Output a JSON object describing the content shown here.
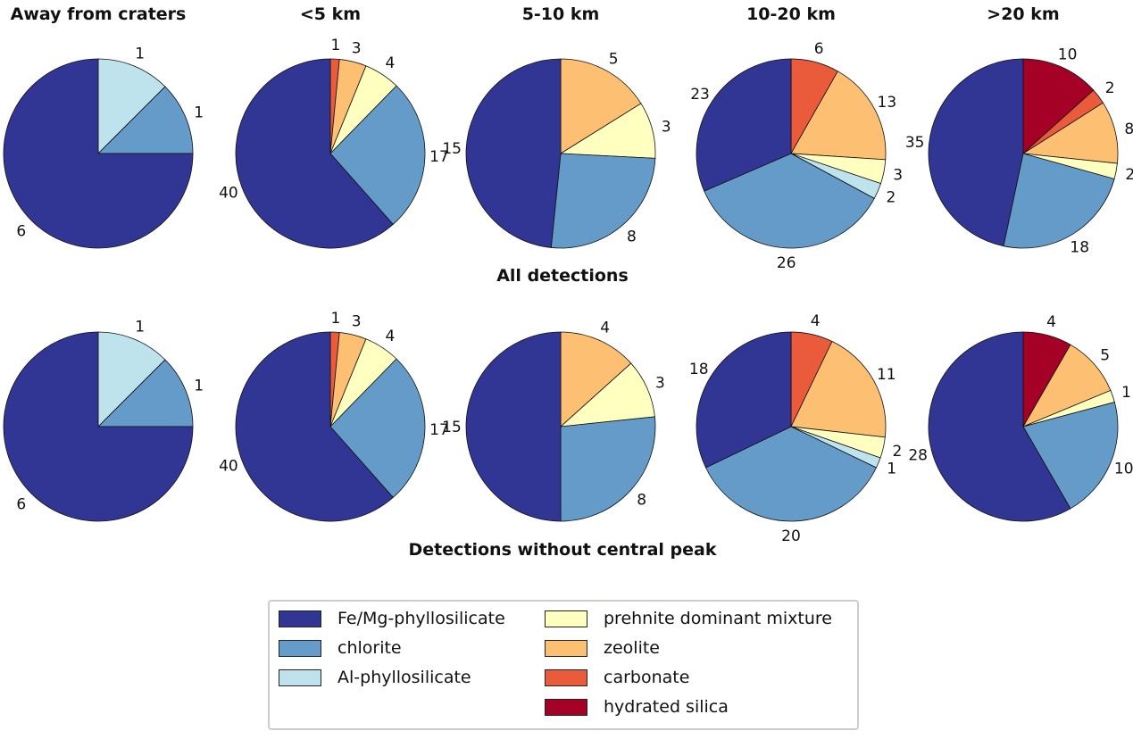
{
  "chart_data": {
    "type": "pie",
    "column_titles": [
      "Away from craters",
      "<5 km",
      "5-10 km",
      "10-20 km",
      ">20 km"
    ],
    "row_titles": [
      "All detections",
      "Detections without central peak"
    ],
    "categories": [
      "Fe/Mg-phyllosilicate",
      "chlorite",
      "Al-phyllosilicate",
      "prehnite dominant mixture",
      "zeolite",
      "carbonate",
      "hydrated silica"
    ],
    "colors": {
      "Fe/Mg-phyllosilicate": "#313695",
      "chlorite": "#649bc8",
      "Al-phyllosilicate": "#bee3ed",
      "prehnite dominant mixture": "#ffffbf",
      "zeolite": "#fdbf72",
      "carbonate": "#e95b3b",
      "hydrated silica": "#a50026"
    },
    "slice_order_clockwise_from_top": [
      "hydrated silica",
      "carbonate",
      "zeolite",
      "prehnite dominant mixture",
      "Al-phyllosilicate",
      "chlorite",
      "Fe/Mg-phyllosilicate"
    ],
    "pies": [
      [
        {
          "Al-phyllosilicate": 1,
          "chlorite": 1,
          "Fe/Mg-phyllosilicate": 6
        },
        {
          "carbonate": 1,
          "zeolite": 3,
          "prehnite dominant mixture": 4,
          "chlorite": 17,
          "Fe/Mg-phyllosilicate": 40
        },
        {
          "zeolite": 5,
          "prehnite dominant mixture": 3,
          "chlorite": 8,
          "Fe/Mg-phyllosilicate": 15
        },
        {
          "carbonate": 6,
          "zeolite": 13,
          "prehnite dominant mixture": 3,
          "Al-phyllosilicate": 2,
          "chlorite": 26,
          "Fe/Mg-phyllosilicate": 23
        },
        {
          "hydrated silica": 10,
          "carbonate": 2,
          "zeolite": 8,
          "prehnite dominant mixture": 2,
          "chlorite": 18,
          "Fe/Mg-phyllosilicate": 35
        }
      ],
      [
        {
          "Al-phyllosilicate": 1,
          "chlorite": 1,
          "Fe/Mg-phyllosilicate": 6
        },
        {
          "carbonate": 1,
          "zeolite": 3,
          "prehnite dominant mixture": 4,
          "chlorite": 17,
          "Fe/Mg-phyllosilicate": 40
        },
        {
          "zeolite": 4,
          "prehnite dominant mixture": 3,
          "chlorite": 8,
          "Fe/Mg-phyllosilicate": 15
        },
        {
          "carbonate": 4,
          "zeolite": 11,
          "prehnite dominant mixture": 2,
          "Al-phyllosilicate": 1,
          "chlorite": 20,
          "Fe/Mg-phyllosilicate": 18
        },
        {
          "hydrated silica": 4,
          "zeolite": 5,
          "prehnite dominant mixture": 1,
          "chlorite": 10,
          "Fe/Mg-phyllosilicate": 28
        }
      ]
    ],
    "legend_placement": "bottom-center"
  }
}
